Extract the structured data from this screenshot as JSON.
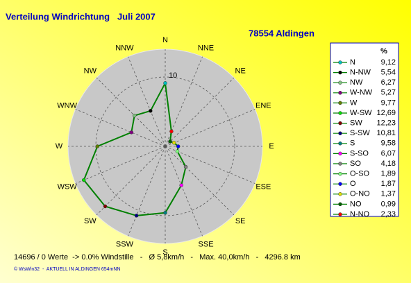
{
  "chart_data": {
    "type": "radar",
    "title": "Verteilung Windrichtung   Juli 2007",
    "subtitle": "78554 Aldingen",
    "categories": [
      "N",
      "NNE",
      "NE",
      "ENE",
      "E",
      "ESE",
      "SE",
      "SSE",
      "S",
      "SSW",
      "SW",
      "WSW",
      "W",
      "WNW",
      "NW",
      "NNW"
    ],
    "legend_title": "%",
    "legend_names": [
      "N",
      "N-NW",
      "NW",
      "W-NW",
      "W",
      "W-SW",
      "SW",
      "S-SW",
      "S",
      "S-SO",
      "SO",
      "O-SO",
      "O",
      "O-NO",
      "NO",
      "N-NO"
    ],
    "values": [
      9.12,
      5.54,
      6.27,
      5.27,
      9.77,
      12.69,
      12.23,
      10.81,
      9.58,
      6.07,
      4.18,
      1.89,
      1.87,
      1.37,
      0.99,
      2.33
    ],
    "value_labels": [
      "9,12",
      "5,54",
      "6,27",
      "5,27",
      "9,77",
      "12,69",
      "12,23",
      "10,81",
      "9,58",
      "6,07",
      "4,18",
      "1,89",
      "1,87",
      "1,37",
      "0,99",
      "2,33"
    ],
    "colors": [
      "#00c0c0",
      "#000000",
      "#80c080",
      "#800080",
      "#608000",
      "#00e000",
      "#800000",
      "#000080",
      "#008080",
      "#ff00ff",
      "#808080",
      "#80ff80",
      "#0000ff",
      "#e0e000",
      "#006000",
      "#ff0000"
    ],
    "line_color": "#008000",
    "rlim": [
      0,
      14
    ],
    "rticks": [
      10
    ],
    "footer": "14696 / 0 Werte  -> 0.0% Windstille   -   Ø 5,8km/h   -   Max. 40,0km/h   -   4296.8 km",
    "credit": "© WsWin32  -  AKTUELL IN ALDINGEN 654mNN"
  }
}
